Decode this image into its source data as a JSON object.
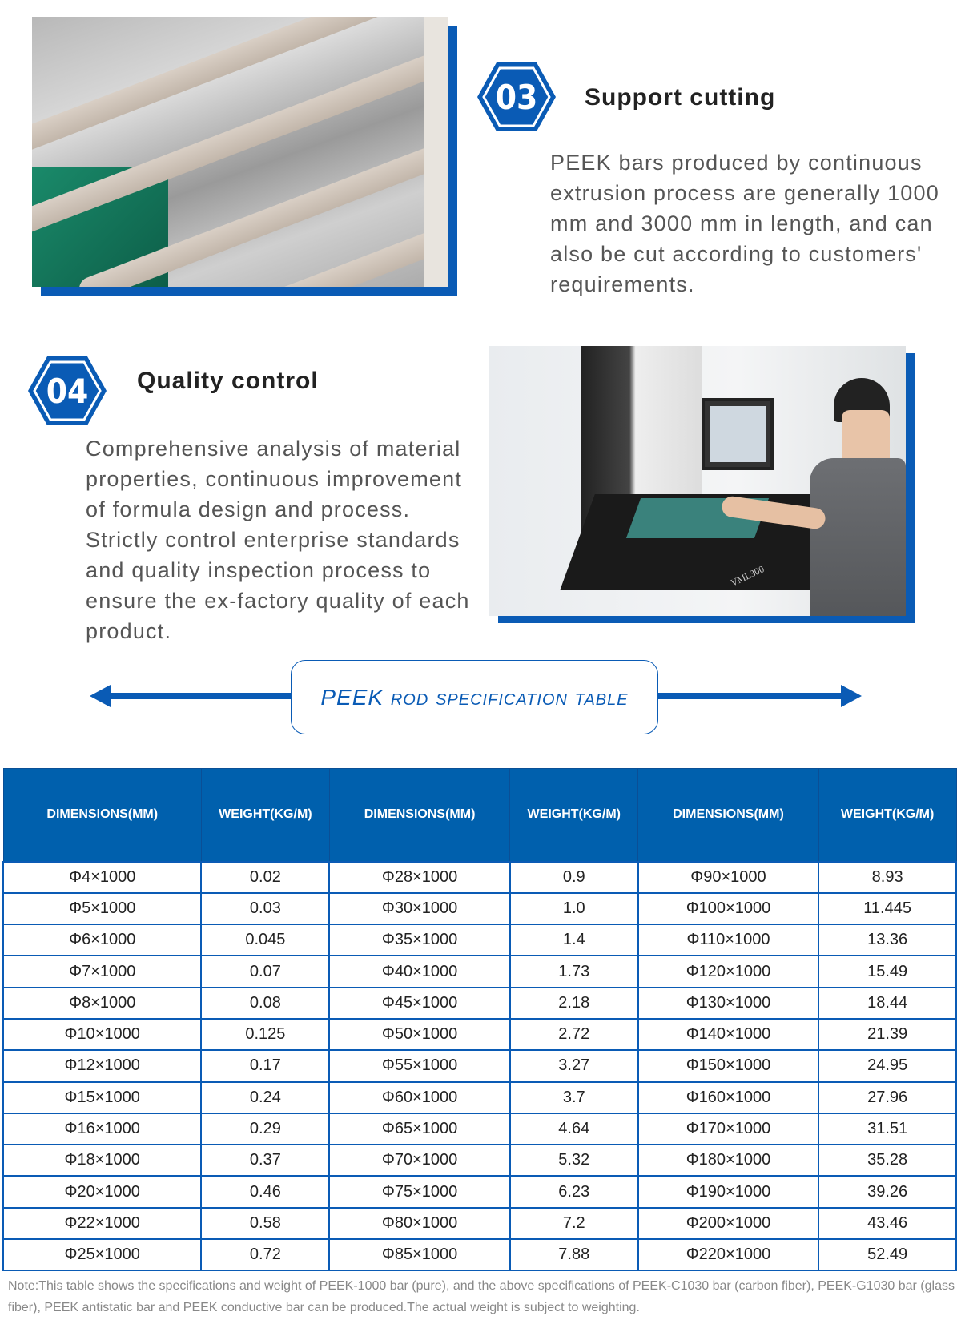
{
  "section03": {
    "number": "03",
    "title": "Support cutting",
    "text": "PEEK bars produced by continuous extrusion process are generally 1000 mm and 3000 mm in length, and can also be cut according to customers' requirements."
  },
  "section04": {
    "number": "04",
    "title": "Quality control",
    "text": "Comprehensive analysis of material properties, continuous improvement of formula design and process. Strictly control enterprise standards and quality inspection process to ensure the ex-factory quality of each product."
  },
  "photo2_label": "VML300",
  "banner": {
    "title": "PEEK rod specification table"
  },
  "colors": {
    "accent": "#0a5bb5",
    "header_bg": "#0060ad"
  },
  "table": {
    "headers": [
      "DIMENSIONS(MM)",
      "WEIGHT(KG/M)",
      "DIMENSIONS(MM)",
      "WEIGHT(KG/M)",
      "DIMENSIONS(MM)",
      "WEIGHT(KG/M)"
    ],
    "rows": [
      [
        "Φ4×1000",
        "0.02",
        "Φ28×1000",
        "0.9",
        "Φ90×1000",
        "8.93"
      ],
      [
        "Φ5×1000",
        "0.03",
        "Φ30×1000",
        "1.0",
        "Φ100×1000",
        "11.445"
      ],
      [
        "Φ6×1000",
        "0.045",
        "Φ35×1000",
        "1.4",
        "Φ110×1000",
        "13.36"
      ],
      [
        "Φ7×1000",
        "0.07",
        "Φ40×1000",
        "1.73",
        "Φ120×1000",
        "15.49"
      ],
      [
        "Φ8×1000",
        "0.08",
        "Φ45×1000",
        "2.18",
        "Φ130×1000",
        "18.44"
      ],
      [
        "Φ10×1000",
        "0.125",
        "Φ50×1000",
        "2.72",
        "Φ140×1000",
        "21.39"
      ],
      [
        "Φ12×1000",
        "0.17",
        "Φ55×1000",
        "3.27",
        "Φ150×1000",
        "24.95"
      ],
      [
        "Φ15×1000",
        "0.24",
        "Φ60×1000",
        "3.7",
        "Φ160×1000",
        "27.96"
      ],
      [
        "Φ16×1000",
        "0.29",
        "Φ65×1000",
        "4.64",
        "Φ170×1000",
        "31.51"
      ],
      [
        "Φ18×1000",
        "0.37",
        "Φ70×1000",
        "5.32",
        "Φ180×1000",
        "35.28"
      ],
      [
        "Φ20×1000",
        "0.46",
        "Φ75×1000",
        "6.23",
        "Φ190×1000",
        "39.26"
      ],
      [
        "Φ22×1000",
        "0.58",
        "Φ80×1000",
        "7.2",
        "Φ200×1000",
        "43.46"
      ],
      [
        "Φ25×1000",
        "0.72",
        "Φ85×1000",
        "7.88",
        "Φ220×1000",
        "52.49"
      ]
    ]
  },
  "note": "Note:This table shows the specifications and weight of PEEK-1000 bar (pure), and the above specifications of PEEK-C1030 bar (carbon fiber), PEEK-G1030 bar (glass fiber), PEEK antistatic bar and PEEK conductive bar can be produced.The actual weight is subject to weighting."
}
